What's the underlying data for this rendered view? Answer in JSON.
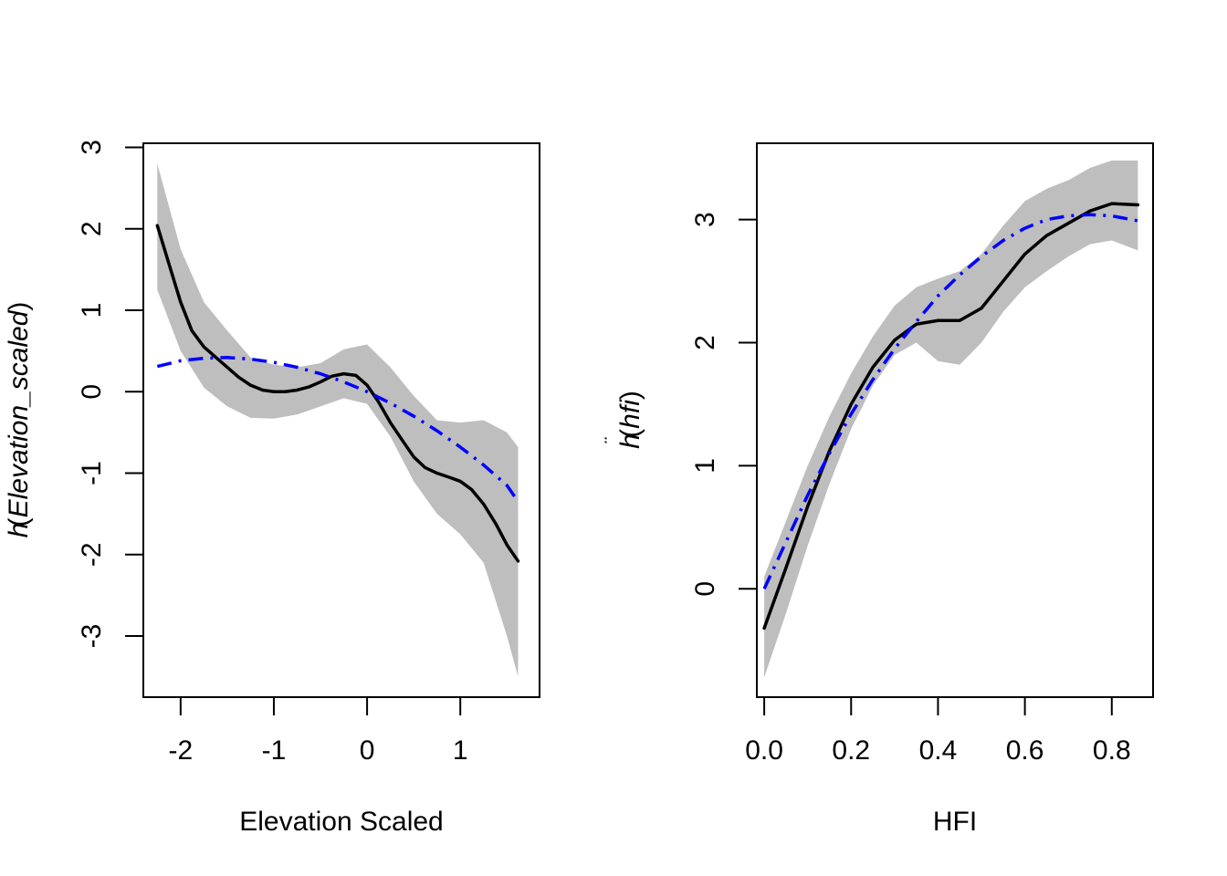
{
  "chart_data": [
    {
      "type": "line",
      "title": "",
      "xlabel": "Elevation Scaled",
      "ylabel": {
        "base": "h",
        "accent": "¨",
        "arg": "Elevation_scaled"
      },
      "xlim": [
        -2.4,
        1.85
      ],
      "ylim": [
        -3.75,
        3.05
      ],
      "xticks": [
        -2,
        -1,
        0,
        1
      ],
      "xtick_labels": [
        "-2",
        "-1",
        "0",
        "1"
      ],
      "yticks": [
        -3,
        -2,
        -1,
        0,
        1,
        2,
        3
      ],
      "ytick_labels": [
        "-3",
        "-2",
        "-1",
        "0",
        "1",
        "2",
        "3"
      ],
      "grid": false,
      "colors": {
        "band": "#bebebe",
        "fit": "#000000",
        "reference": "#0000ff"
      },
      "band": {
        "x": [
          -2.25,
          -2.0,
          -1.75,
          -1.5,
          -1.25,
          -1.0,
          -0.75,
          -0.5,
          -0.25,
          0.0,
          0.25,
          0.5,
          0.75,
          1.0,
          1.25,
          1.5,
          1.62
        ],
        "lower": [
          1.25,
          0.5,
          0.05,
          -0.18,
          -0.32,
          -0.33,
          -0.28,
          -0.18,
          -0.08,
          -0.15,
          -0.55,
          -1.1,
          -1.5,
          -1.75,
          -2.1,
          -3.0,
          -3.5
        ],
        "upper": [
          2.8,
          1.75,
          1.1,
          0.75,
          0.42,
          0.33,
          0.3,
          0.35,
          0.52,
          0.58,
          0.3,
          -0.05,
          -0.35,
          -0.38,
          -0.35,
          -0.5,
          -0.68
        ]
      },
      "series": [
        {
          "style": "solid",
          "x": [
            -2.25,
            -2.12,
            -2.0,
            -1.88,
            -1.75,
            -1.62,
            -1.5,
            -1.38,
            -1.25,
            -1.12,
            -1.0,
            -0.88,
            -0.75,
            -0.62,
            -0.5,
            -0.38,
            -0.25,
            -0.12,
            0.0,
            0.12,
            0.25,
            0.38,
            0.5,
            0.62,
            0.75,
            0.88,
            1.0,
            1.12,
            1.25,
            1.38,
            1.5,
            1.62
          ],
          "y": [
            2.04,
            1.55,
            1.1,
            0.75,
            0.55,
            0.42,
            0.3,
            0.18,
            0.08,
            0.02,
            0.0,
            0.0,
            0.02,
            0.06,
            0.12,
            0.19,
            0.22,
            0.2,
            0.08,
            -0.12,
            -0.38,
            -0.6,
            -0.8,
            -0.93,
            -1.0,
            -1.05,
            -1.1,
            -1.2,
            -1.38,
            -1.62,
            -1.88,
            -2.08
          ]
        },
        {
          "style": "dotdash",
          "x": [
            -2.25,
            -2.0,
            -1.75,
            -1.5,
            -1.25,
            -1.0,
            -0.75,
            -0.5,
            -0.25,
            0.0,
            0.25,
            0.5,
            0.75,
            1.0,
            1.25,
            1.5,
            1.62
          ],
          "y": [
            0.31,
            0.38,
            0.41,
            0.42,
            0.4,
            0.36,
            0.3,
            0.22,
            0.12,
            0.0,
            -0.14,
            -0.3,
            -0.48,
            -0.68,
            -0.9,
            -1.15,
            -1.35
          ]
        }
      ]
    },
    {
      "type": "line",
      "title": "",
      "xlabel": "HFI",
      "ylabel": {
        "base": "h",
        "accent": "¨",
        "arg": "hfi"
      },
      "xlim": [
        -0.017,
        0.895
      ],
      "ylim": [
        -0.88,
        3.62
      ],
      "xticks": [
        0.0,
        0.2,
        0.4,
        0.6,
        0.8
      ],
      "xtick_labels": [
        "0.0",
        "0.2",
        "0.4",
        "0.6",
        "0.8"
      ],
      "yticks": [
        0,
        1,
        2,
        3
      ],
      "ytick_labels": [
        "0",
        "1",
        "2",
        "3"
      ],
      "grid": false,
      "colors": {
        "band": "#bebebe",
        "fit": "#000000",
        "reference": "#0000ff"
      },
      "band": {
        "x": [
          0.0,
          0.05,
          0.1,
          0.15,
          0.2,
          0.25,
          0.3,
          0.35,
          0.4,
          0.45,
          0.5,
          0.55,
          0.6,
          0.65,
          0.7,
          0.75,
          0.8,
          0.86
        ],
        "lower": [
          -0.72,
          -0.2,
          0.35,
          0.85,
          1.3,
          1.65,
          1.9,
          2.0,
          1.85,
          1.82,
          2.0,
          2.25,
          2.45,
          2.58,
          2.7,
          2.8,
          2.83,
          2.75
        ],
        "upper": [
          0.1,
          0.55,
          1.0,
          1.4,
          1.75,
          2.05,
          2.3,
          2.45,
          2.52,
          2.58,
          2.72,
          2.95,
          3.15,
          3.25,
          3.32,
          3.42,
          3.48,
          3.48
        ]
      },
      "series": [
        {
          "style": "solid",
          "x": [
            0.0,
            0.05,
            0.1,
            0.15,
            0.2,
            0.25,
            0.3,
            0.35,
            0.4,
            0.45,
            0.5,
            0.55,
            0.6,
            0.65,
            0.7,
            0.75,
            0.8,
            0.86
          ],
          "y": [
            -0.32,
            0.17,
            0.67,
            1.12,
            1.5,
            1.8,
            2.02,
            2.15,
            2.18,
            2.18,
            2.28,
            2.5,
            2.72,
            2.87,
            2.97,
            3.07,
            3.13,
            3.12
          ]
        },
        {
          "style": "dotdash",
          "x": [
            0.0,
            0.05,
            0.1,
            0.15,
            0.2,
            0.25,
            0.3,
            0.35,
            0.4,
            0.45,
            0.5,
            0.55,
            0.6,
            0.65,
            0.7,
            0.75,
            0.8,
            0.86
          ],
          "y": [
            0.0,
            0.38,
            0.76,
            1.1,
            1.42,
            1.7,
            1.95,
            2.17,
            2.38,
            2.55,
            2.7,
            2.83,
            2.93,
            3.0,
            3.03,
            3.04,
            3.03,
            2.99
          ]
        }
      ]
    }
  ]
}
